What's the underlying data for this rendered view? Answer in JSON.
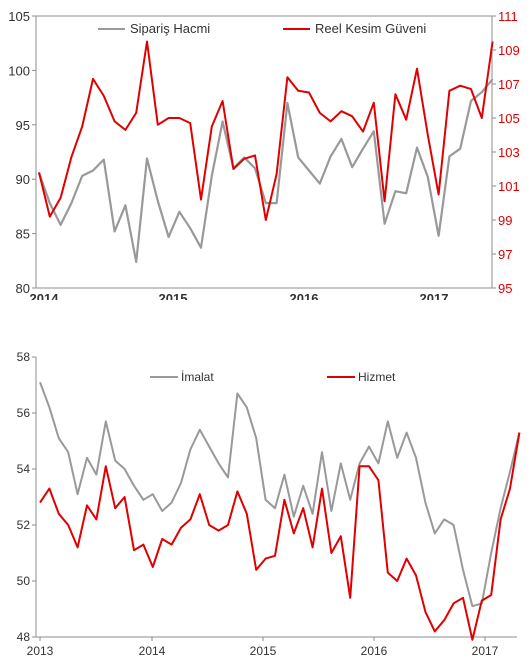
{
  "chart_data": [
    {
      "type": "line",
      "title": "",
      "x_tick_labels": [
        "2014",
        "2015",
        "2016",
        "2017"
      ],
      "y_left": {
        "min": 80,
        "max": 105,
        "ticks": [
          "80",
          "85",
          "90",
          "95",
          "100",
          "105"
        ]
      },
      "y_right": {
        "min": 95,
        "max": 111,
        "ticks": [
          "95",
          "97",
          "99",
          "101",
          "103",
          "105",
          "107",
          "109",
          "111"
        ]
      },
      "legend": [
        "Sipariş Hacmi",
        "Reel Kesim Güveni"
      ],
      "grid": false,
      "series": [
        {
          "name": "Sipariş Hacmi",
          "color": "#999999",
          "axis": "left",
          "values": [
            90.6,
            87.8,
            85.8,
            87.8,
            90.3,
            90.8,
            91.8,
            85.2,
            87.6,
            82.4,
            91.9,
            88.0,
            84.7,
            87.0,
            85.5,
            83.7,
            90.3,
            95.3,
            91.0,
            92.0,
            91.0,
            87.8,
            87.8,
            97.0,
            92.0,
            90.8,
            89.6,
            92.1,
            93.7,
            91.1,
            92.8,
            94.4,
            85.9,
            88.9,
            88.7,
            92.9,
            90.2,
            84.8,
            92.1,
            92.8,
            97.2,
            98.0,
            99.2
          ]
        },
        {
          "name": "Reel Kesim Güveni",
          "color": "#e00000",
          "axis": "right",
          "values": [
            101.8,
            99.2,
            100.3,
            102.7,
            104.5,
            107.3,
            106.3,
            104.8,
            104.3,
            105.3,
            109.5,
            104.6,
            105.0,
            105.0,
            104.7,
            100.2,
            104.5,
            106.0,
            102.0,
            102.6,
            102.8,
            99.0,
            101.7,
            107.4,
            106.6,
            106.5,
            105.3,
            104.8,
            105.4,
            105.1,
            104.2,
            105.9,
            100.1,
            106.4,
            104.9,
            107.9,
            104.0,
            100.5,
            106.6,
            106.9,
            106.7,
            105.0,
            109.5
          ]
        }
      ]
    },
    {
      "type": "line",
      "title": "",
      "x_tick_labels": [
        "2013",
        "2014",
        "2015",
        "2016",
        "2017"
      ],
      "y": {
        "min": 48,
        "max": 58,
        "ticks": [
          "48",
          "50",
          "52",
          "54",
          "56",
          "58"
        ]
      },
      "legend": [
        "İmalat",
        "Hizmet"
      ],
      "grid": false,
      "series": [
        {
          "name": "İmalat",
          "color": "#999999",
          "values": [
            57.1,
            56.2,
            55.1,
            54.6,
            53.1,
            54.4,
            53.8,
            55.7,
            54.3,
            54.0,
            53.4,
            52.9,
            53.1,
            52.5,
            52.8,
            53.5,
            54.7,
            55.4,
            54.8,
            54.2,
            53.7,
            56.7,
            56.2,
            55.1,
            52.9,
            52.6,
            53.8,
            52.3,
            53.4,
            52.4,
            54.6,
            52.5,
            54.2,
            52.9,
            54.2,
            54.8,
            54.2,
            55.7,
            54.4,
            55.3,
            54.4,
            52.8,
            51.7,
            52.2,
            52.0,
            50.4,
            49.1,
            49.2,
            51.0,
            52.6,
            53.9,
            55.3
          ]
        },
        {
          "name": "Hizmet",
          "color": "#e00000",
          "values": [
            52.8,
            53.3,
            52.4,
            52.0,
            51.2,
            52.7,
            52.2,
            54.1,
            52.6,
            53.0,
            51.1,
            51.3,
            50.5,
            51.5,
            51.3,
            51.9,
            52.2,
            53.1,
            52.0,
            51.8,
            52.0,
            53.2,
            52.4,
            50.4,
            50.8,
            50.9,
            52.9,
            51.7,
            52.6,
            51.2,
            53.3,
            51.0,
            51.6,
            49.4,
            54.1,
            54.1,
            53.6,
            50.3,
            50.0,
            50.8,
            50.2,
            48.9,
            48.2,
            48.6,
            49.2,
            49.4,
            47.9,
            49.3,
            49.5,
            52.2,
            53.3,
            55.3
          ]
        }
      ]
    }
  ]
}
